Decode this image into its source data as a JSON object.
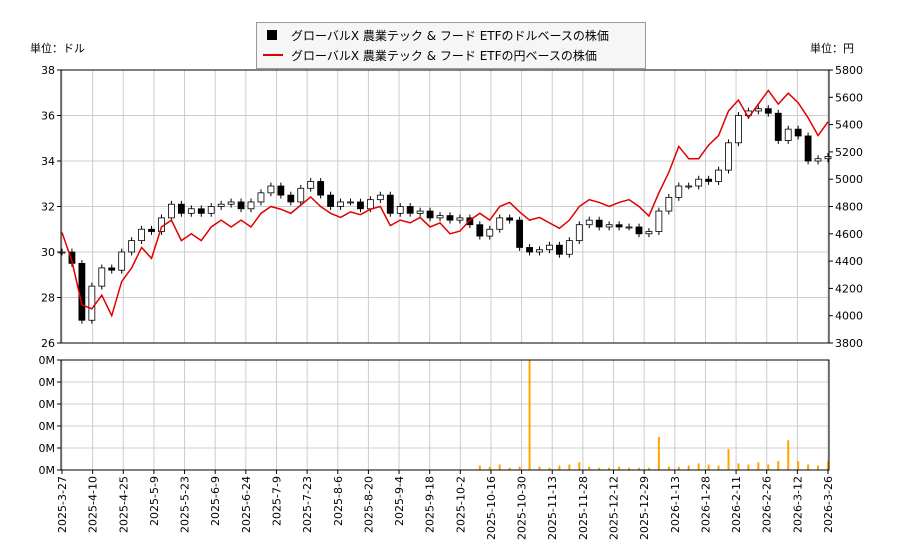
{
  "chart_data": [
    {
      "type": "candlestick+line",
      "left_unit_label": "単位：ドル",
      "right_unit_label": "単位：円",
      "legend": [
        {
          "label": "グローバルX 農業テック & フード ETFのドルベースの株価",
          "color": "#000000",
          "marker": "square"
        },
        {
          "label": "グローバルX 農業テック & フード ETFの円ベースの株価",
          "color": "#e00000",
          "marker": "line"
        }
      ],
      "ylim_left": [
        26,
        38
      ],
      "yticks_left": [
        "26",
        "28",
        "30",
        "32",
        "34",
        "36",
        "38"
      ],
      "ylim_right": [
        3800,
        5800
      ],
      "yticks_right": [
        "3800",
        "4000",
        "4200",
        "4400",
        "4600",
        "4800",
        "5000",
        "5200",
        "5400",
        "5600",
        "5800"
      ],
      "x_tick_labels": [
        "2025-3-27",
        "2025-4-10",
        "2025-4-25",
        "2025-5-9",
        "2025-5-23",
        "2025-6-9",
        "2025-6-24",
        "2025-7-9",
        "2025-7-23",
        "2025-8-6",
        "2025-8-20",
        "2025-9-4",
        "2025-9-18",
        "2025-10-2",
        "2025-10-16",
        "2025-10-30",
        "2025-11-13",
        "2025-11-28",
        "2025-12-12",
        "2025-12-29",
        "2026-1-13",
        "2026-1-28",
        "2026-2-11",
        "2026-2-26",
        "2026-3-12",
        "2026-3-26"
      ],
      "grid": true,
      "usd_close": [
        30.0,
        29.5,
        27.0,
        28.5,
        29.3,
        29.2,
        30.0,
        30.5,
        31.0,
        30.9,
        31.5,
        32.1,
        31.7,
        31.9,
        31.7,
        32.0,
        32.1,
        32.2,
        31.9,
        32.2,
        32.6,
        32.9,
        32.5,
        32.2,
        32.8,
        33.1,
        32.5,
        32.0,
        32.2,
        32.2,
        31.9,
        32.3,
        32.5,
        31.7,
        32.0,
        31.7,
        31.8,
        31.5,
        31.6,
        31.4,
        31.5,
        31.2,
        30.7,
        31.0,
        31.5,
        31.4,
        30.2,
        30.0,
        30.1,
        30.3,
        29.9,
        30.5,
        31.2,
        31.4,
        31.1,
        31.2,
        31.1,
        31.1,
        30.8,
        30.9,
        31.8,
        32.4,
        32.9,
        32.9,
        33.2,
        33.1,
        33.6,
        34.8,
        36.0,
        36.2,
        36.3,
        36.1,
        34.9,
        35.4,
        35.1,
        34.0,
        34.1,
        34.2
      ],
      "jpy_close": [
        4610,
        4400,
        4080,
        4050,
        4150,
        4000,
        4250,
        4350,
        4500,
        4420,
        4650,
        4700,
        4550,
        4600,
        4550,
        4650,
        4700,
        4650,
        4700,
        4650,
        4750,
        4800,
        4780,
        4750,
        4810,
        4870,
        4800,
        4750,
        4720,
        4760,
        4740,
        4780,
        4800,
        4660,
        4700,
        4680,
        4720,
        4650,
        4680,
        4600,
        4620,
        4700,
        4750,
        4700,
        4800,
        4830,
        4760,
        4700,
        4720,
        4680,
        4640,
        4700,
        4800,
        4850,
        4830,
        4800,
        4830,
        4850,
        4800,
        4730,
        4900,
        5050,
        5240,
        5150,
        5150,
        5250,
        5320,
        5500,
        5580,
        5450,
        5550,
        5650,
        5550,
        5630,
        5560,
        5450,
        5320,
        5420
      ]
    },
    {
      "type": "bar",
      "series_name": "volume",
      "color": "#ffa500",
      "yticks": [
        "0M",
        "0M",
        "0M",
        "0M",
        "0M",
        "0M"
      ],
      "ylim": [
        0,
        1
      ],
      "values": [
        0,
        0,
        0,
        0,
        0,
        0,
        0,
        0,
        0,
        0,
        0,
        0,
        0,
        0,
        0,
        0,
        0,
        0,
        0,
        0,
        0,
        0,
        0,
        0,
        0,
        0,
        0,
        0,
        0,
        0,
        0,
        0,
        0,
        0,
        0,
        0,
        0,
        0,
        0,
        0,
        0,
        0,
        0.04,
        0.03,
        0.05,
        0.02,
        0.03,
        1.0,
        0.03,
        0.02,
        0.04,
        0.05,
        0.07,
        0.03,
        0.02,
        0.02,
        0.03,
        0.02,
        0.02,
        0.02,
        0.3,
        0.03,
        0.03,
        0.04,
        0.06,
        0.05,
        0.04,
        0.19,
        0.06,
        0.05,
        0.07,
        0.05,
        0.08,
        0.27,
        0.08,
        0.05,
        0.04,
        0.08
      ]
    }
  ]
}
